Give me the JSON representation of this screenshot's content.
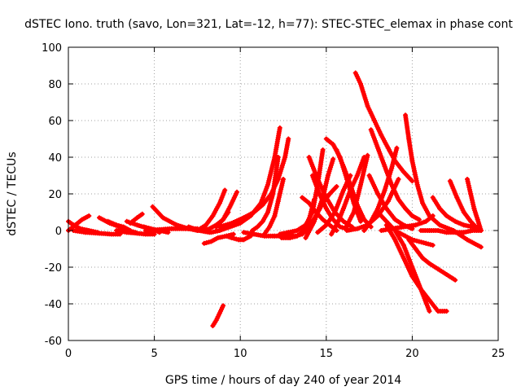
{
  "chart_data": {
    "type": "scatter",
    "title": "dSTEC Iono. truth (savo, Lon=321, Lat=-12, h=77): STEC-STEC_elemax in phase cont",
    "xlabel": "GPS time / hours of day 240 of year 2014",
    "ylabel": "dSTEC  / TECUs",
    "xlim": [
      0,
      25
    ],
    "ylim": [
      -60,
      100
    ],
    "x_ticks": [
      0,
      5,
      10,
      15,
      20,
      25
    ],
    "y_ticks": [
      -60,
      -40,
      -20,
      0,
      20,
      40,
      60,
      80,
      100
    ],
    "grid": true,
    "legend": "none",
    "marker": "plus",
    "color": "#ff0000",
    "series": [
      {
        "x": [
          0.0,
          0.3,
          0.7,
          1.2,
          1.7
        ],
        "y": [
          5,
          3,
          1,
          0,
          -1
        ]
      },
      {
        "x": [
          0.0,
          0.4,
          0.8,
          1.2
        ],
        "y": [
          0,
          3,
          6,
          8
        ]
      },
      {
        "x": [
          0.3,
          1.0,
          1.8,
          2.5,
          3.0
        ],
        "y": [
          0,
          -1,
          -1.5,
          -2,
          -2
        ]
      },
      {
        "x": [
          1.8,
          2.4,
          3.0,
          3.5,
          3.9
        ],
        "y": [
          7,
          4,
          2,
          0,
          -1
        ]
      },
      {
        "x": [
          2.3,
          2.8,
          3.2,
          3.6
        ],
        "y": [
          5,
          3,
          2,
          0
        ]
      },
      {
        "x": [
          2.8,
          3.4,
          4.0,
          4.5,
          5.0
        ],
        "y": [
          0,
          -1,
          -1.5,
          -2,
          -2
        ]
      },
      {
        "x": [
          3.4,
          4.0,
          4.7,
          5.3,
          5.8
        ],
        "y": [
          5,
          3,
          1,
          0,
          -1
        ]
      },
      {
        "x": [
          3.6,
          4.0,
          4.3
        ],
        "y": [
          4,
          7,
          9
        ]
      },
      {
        "x": [
          4.4,
          4.8,
          5.1,
          5.3
        ],
        "y": [
          2,
          1,
          0,
          -1
        ]
      },
      {
        "x": [
          4.9,
          5.5,
          6.3,
          7.0,
          7.5
        ],
        "y": [
          13,
          7,
          3,
          1,
          0
        ]
      },
      {
        "x": [
          4.5,
          5.3,
          6.0,
          6.8,
          7.5
        ],
        "y": [
          0,
          0.5,
          1,
          1,
          1
        ]
      },
      {
        "x": [
          7.0,
          7.6,
          8.2
        ],
        "y": [
          2,
          0,
          -1
        ]
      },
      {
        "x": [
          7.8,
          8.2,
          8.6,
          9.0,
          9.3
        ],
        "y": [
          0,
          1,
          3,
          6,
          10
        ]
      },
      {
        "x": [
          7.5,
          8.0,
          8.4,
          8.8,
          9.1
        ],
        "y": [
          0,
          3,
          8,
          15,
          22
        ]
      },
      {
        "x": [
          7.9,
          8.3,
          8.7,
          9.2,
          9.6
        ],
        "y": [
          -7,
          -6,
          -4,
          -3,
          -2
        ]
      },
      {
        "x": [
          9.2,
          9.5,
          9.9,
          10.2,
          10.4,
          10.6
        ],
        "y": [
          -3,
          -4,
          -5,
          -5,
          -4,
          -3
        ]
      },
      {
        "x": [
          8.6,
          9.0,
          9.4,
          9.8
        ],
        "y": [
          2,
          6,
          13,
          21
        ]
      },
      {
        "x": [
          8.4,
          8.6,
          8.8,
          9.0
        ],
        "y": [
          -52,
          -49,
          -45,
          -41
        ]
      },
      {
        "x": [
          8.3,
          8.8,
          9.4,
          10.0,
          10.6,
          11.2,
          11.6,
          12.0,
          12.3
        ],
        "y": [
          -1,
          0,
          2,
          4,
          8,
          15,
          25,
          40,
          56
        ]
      },
      {
        "x": [
          8.8,
          9.5,
          10.2,
          10.8,
          11.3,
          11.8,
          12.2,
          12.6,
          12.8
        ],
        "y": [
          2,
          4,
          7,
          10,
          14,
          20,
          28,
          40,
          50
        ]
      },
      {
        "x": [
          10.7,
          11.0,
          11.3,
          11.6,
          11.9,
          12.2
        ],
        "y": [
          0,
          2,
          5,
          10,
          20,
          40
        ]
      },
      {
        "x": [
          10.2,
          10.8,
          11.4,
          12.0,
          12.6,
          13.0
        ],
        "y": [
          -1,
          -2,
          -3,
          -3,
          -3,
          -2
        ]
      },
      {
        "x": [
          11.4,
          11.7,
          12.0,
          12.2,
          12.5
        ],
        "y": [
          -2,
          2,
          8,
          16,
          28
        ]
      },
      {
        "x": [
          12.4,
          12.9,
          13.3,
          13.7,
          14.0,
          14.3
        ],
        "y": [
          -4,
          -4,
          -3,
          0,
          6,
          17
        ]
      },
      {
        "x": [
          12.3,
          12.8,
          13.3,
          13.8,
          14.2,
          14.5,
          14.8
        ],
        "y": [
          -2,
          -1,
          0,
          3,
          10,
          25,
          44
        ]
      },
      {
        "x": [
          13.2,
          13.6,
          14.0,
          14.4,
          14.8,
          15.2,
          15.6
        ],
        "y": [
          -3,
          -2,
          2,
          8,
          15,
          20,
          24
        ]
      },
      {
        "x": [
          13.6,
          14.0,
          14.4,
          14.8,
          15.2,
          15.6
        ],
        "y": [
          18,
          15,
          10,
          6,
          3,
          0
        ]
      },
      {
        "x": [
          14.2,
          14.6,
          15.0,
          15.4,
          15.8,
          16.2
        ],
        "y": [
          30,
          20,
          12,
          6,
          2,
          1
        ]
      },
      {
        "x": [
          14.0,
          14.5,
          15.0,
          15.5,
          16.0,
          16.5
        ],
        "y": [
          40,
          28,
          18,
          10,
          5,
          2
        ]
      },
      {
        "x": [
          13.8,
          14.3,
          14.8,
          15.1,
          15.4
        ],
        "y": [
          -4,
          5,
          18,
          30,
          39
        ]
      },
      {
        "x": [
          14.5,
          15.0,
          15.5,
          16.0,
          16.4
        ],
        "y": [
          -1,
          3,
          10,
          22,
          30
        ]
      },
      {
        "x": [
          15.0,
          15.4,
          15.8,
          16.2,
          16.6,
          17.0
        ],
        "y": [
          50,
          47,
          40,
          28,
          15,
          5
        ]
      },
      {
        "x": [
          15.3,
          15.7,
          16.0,
          16.4,
          16.8,
          17.2
        ],
        "y": [
          -2,
          5,
          12,
          22,
          30,
          40
        ]
      },
      {
        "x": [
          15.6,
          16.0,
          16.4,
          16.8,
          17.2,
          17.6
        ],
        "y": [
          44,
          35,
          25,
          14,
          6,
          2
        ]
      },
      {
        "x": [
          16.1,
          16.6,
          17.0,
          17.4
        ],
        "y": [
          1,
          10,
          25,
          41
        ]
      },
      {
        "x": [
          16.7,
          17.0,
          17.4,
          17.8,
          18.2,
          18.6,
          19.0,
          19.5,
          20.0
        ],
        "y": [
          86,
          80,
          68,
          60,
          52,
          45,
          38,
          32,
          27
        ]
      },
      {
        "x": [
          17.2,
          17.6,
          18.0,
          18.4,
          18.8,
          19.1
        ],
        "y": [
          0,
          5,
          12,
          22,
          34,
          45
        ]
      },
      {
        "x": [
          16.2,
          16.8,
          17.4,
          18.0,
          18.6,
          19.2
        ],
        "y": [
          0,
          1,
          3,
          8,
          16,
          28
        ]
      },
      {
        "x": [
          17.6,
          18.0,
          18.4,
          18.8,
          19.2,
          19.6,
          20.0,
          20.4
        ],
        "y": [
          55,
          45,
          35,
          25,
          17,
          12,
          8,
          6
        ]
      },
      {
        "x": [
          17.5,
          18.0,
          18.5,
          19.0,
          19.5,
          20.0
        ],
        "y": [
          30,
          20,
          12,
          6,
          3,
          1
        ]
      },
      {
        "x": [
          18.0,
          18.5,
          19.0,
          19.5,
          20.0,
          20.5,
          21.0
        ],
        "y": [
          10,
          5,
          0,
          -8,
          -20,
          -32,
          -44
        ]
      },
      {
        "x": [
          18.5,
          19.0,
          19.5,
          20.0,
          20.5,
          21.0,
          21.5,
          22.0
        ],
        "y": [
          3,
          -5,
          -15,
          -25,
          -32,
          -38,
          -44,
          -44
        ]
      },
      {
        "x": [
          19.8,
          20.2,
          20.6,
          21.0,
          21.5,
          22.0,
          22.5
        ],
        "y": [
          -5,
          -10,
          -15,
          -18,
          -21,
          -24,
          -27
        ]
      },
      {
        "x": [
          19.2,
          19.6,
          20.0,
          20.4,
          20.8,
          21.2
        ],
        "y": [
          -1,
          -3,
          -5,
          -6,
          -7,
          -8
        ]
      },
      {
        "x": [
          19.6,
          19.8,
          20.0,
          20.3,
          20.6,
          21.0,
          21.6,
          22.4,
          23.2,
          24.0
        ],
        "y": [
          63,
          50,
          38,
          25,
          15,
          8,
          3,
          0,
          -5,
          -9
        ]
      },
      {
        "x": [
          18.2,
          18.8,
          19.5,
          20.2,
          20.8,
          21.2
        ],
        "y": [
          0,
          1,
          2,
          3,
          5,
          8
        ]
      },
      {
        "x": [
          21.2,
          21.6,
          22.0,
          22.5,
          23.0,
          23.5,
          24.0
        ],
        "y": [
          18,
          12,
          8,
          5,
          3,
          2,
          0
        ]
      },
      {
        "x": [
          22.2,
          22.6,
          23.0,
          23.4,
          23.8
        ],
        "y": [
          27,
          18,
          10,
          5,
          1
        ]
      },
      {
        "x": [
          23.2,
          23.4,
          23.6,
          23.8,
          24.0
        ],
        "y": [
          28,
          20,
          12,
          6,
          0
        ]
      },
      {
        "x": [
          20.5,
          21.0,
          21.5,
          22.0,
          22.5,
          23.0,
          23.5,
          24.0
        ],
        "y": [
          0,
          0,
          0,
          -1,
          -1,
          -1,
          0,
          0
        ]
      }
    ]
  }
}
